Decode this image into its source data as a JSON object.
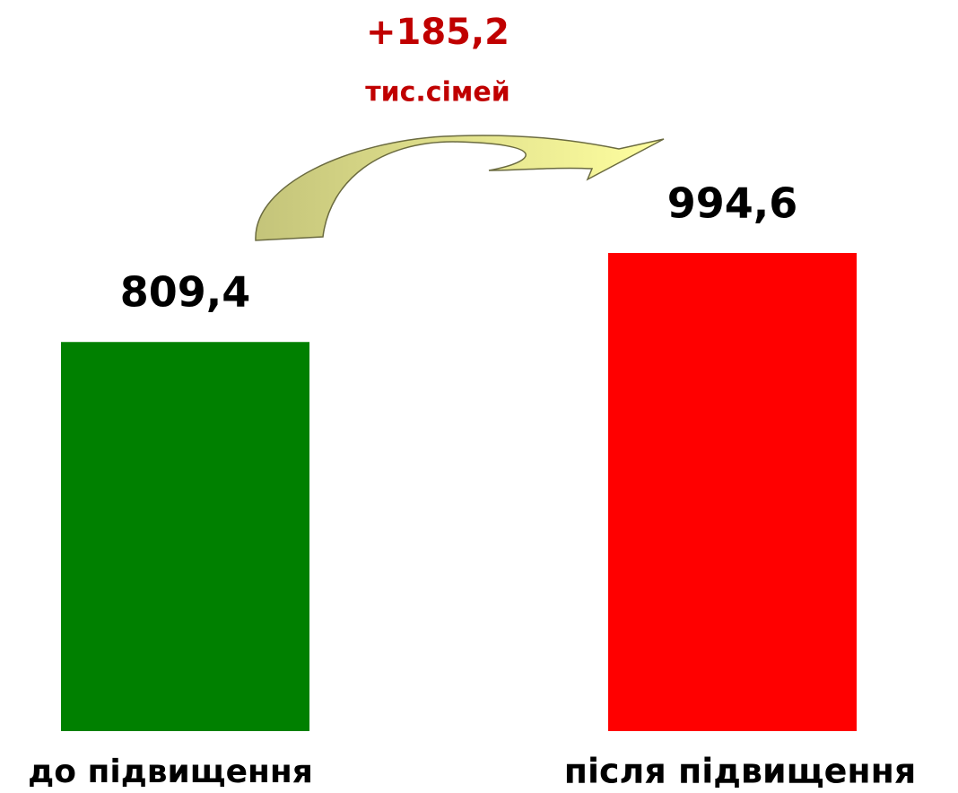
{
  "chart_data": {
    "type": "bar",
    "categories": [
      "до підвищення",
      "після підвищення"
    ],
    "values": [
      809.4,
      994.6
    ],
    "value_labels": [
      "809,4",
      "994,6"
    ],
    "colors": [
      "#008000",
      "#ff0000"
    ],
    "annotation": {
      "text": "+185,2",
      "unit": "тис.сімей"
    }
  }
}
